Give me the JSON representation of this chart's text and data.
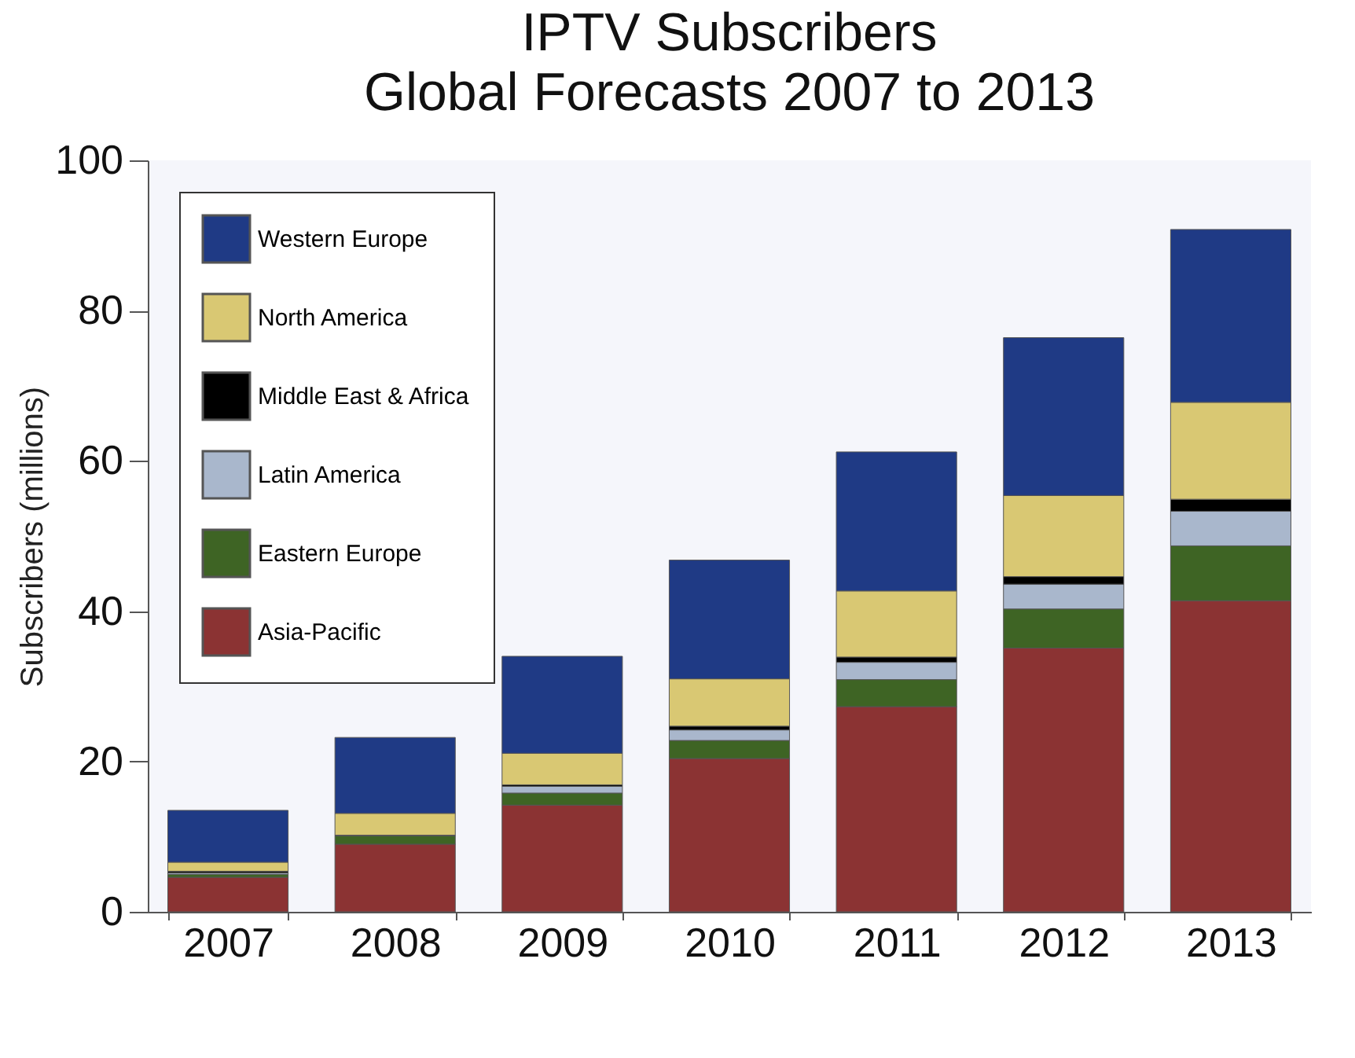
{
  "chart_data": {
    "type": "bar",
    "title": "IPTV Subscribers",
    "subtitle": "Global Forecasts 2007 to 2013",
    "ylabel": "Subscribers (millions)",
    "categories": [
      "2007",
      "2008",
      "2009",
      "2010",
      "2011",
      "2012",
      "2013"
    ],
    "stacked": true,
    "series": [
      {
        "name": "Asia-Pacific",
        "color": "#8b3333",
        "values": [
          4.6,
          9.0,
          14.2,
          20.4,
          27.3,
          35.1,
          41.4
        ]
      },
      {
        "name": "Eastern Europe",
        "color": "#3e6424",
        "values": [
          0.4,
          1.1,
          1.6,
          2.4,
          3.6,
          5.2,
          7.3
        ]
      },
      {
        "name": "Latin America",
        "color": "#a9b7cc",
        "values": [
          0.2,
          null,
          0.9,
          1.4,
          2.3,
          3.3,
          4.6
        ]
      },
      {
        "name": "Middle East & Africa",
        "color": "#000000",
        "values": [
          0.2,
          0.1,
          0.2,
          0.5,
          0.7,
          1.0,
          1.6
        ]
      },
      {
        "name": "North America",
        "color": "#d9c873",
        "values": [
          1.2,
          2.9,
          4.2,
          6.3,
          8.8,
          10.8,
          12.9
        ]
      },
      {
        "name": "Western Europe",
        "color": "#1f3a85",
        "values": [
          6.9,
          10.1,
          12.9,
          15.8,
          18.5,
          21.0,
          23.0
        ]
      }
    ],
    "ylim": [
      0,
      100
    ],
    "yticks": [
      0,
      20,
      40,
      60,
      80,
      100
    ],
    "grid": false,
    "legend": "top left"
  }
}
